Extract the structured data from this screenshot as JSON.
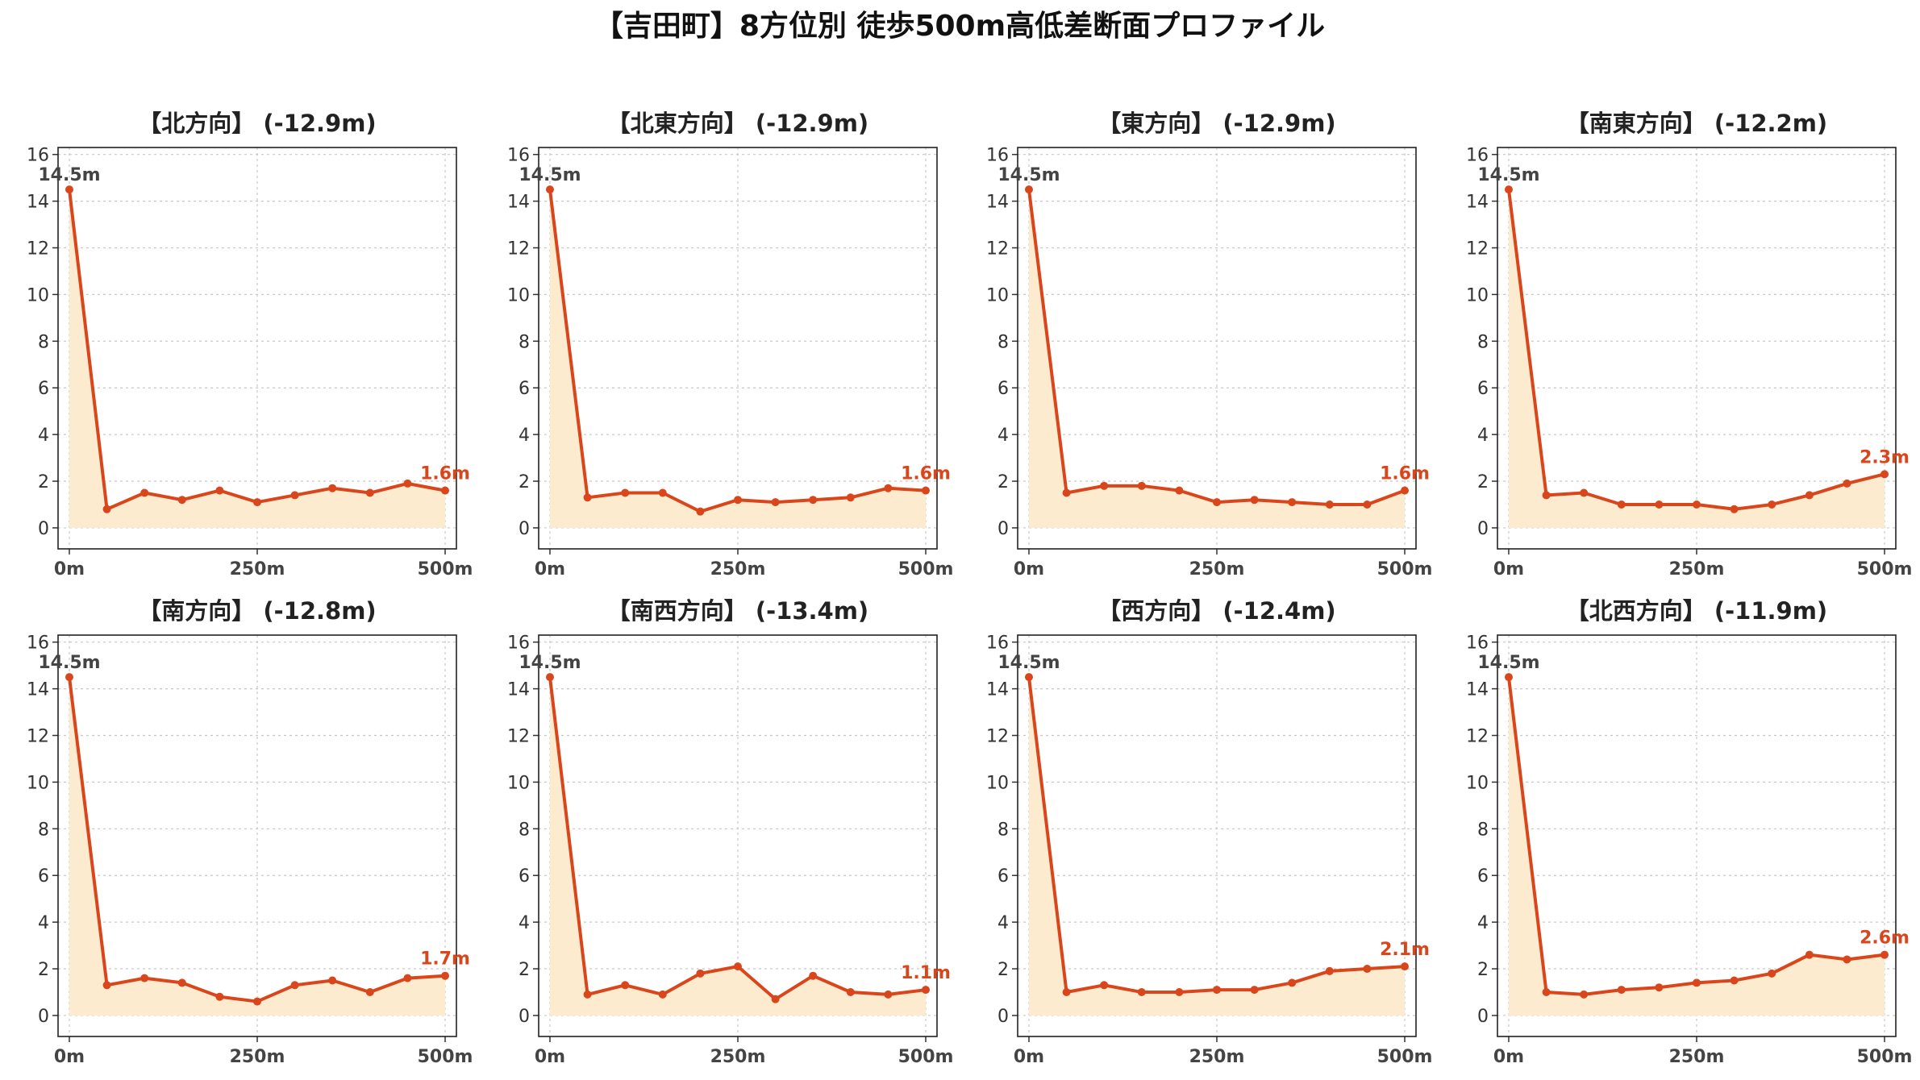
{
  "figure_title": "【吉田町】8方位別 徒歩500m高低差断面プロファイル",
  "colors": {
    "line": "#d9461b",
    "fill": "#fdebd0",
    "grid": "#c8c8c8",
    "start_label": "#444444",
    "end_label": "#d9461b"
  },
  "chart_data": [
    {
      "type": "area",
      "title": "【北方向】 (-12.9m)",
      "x": [
        0,
        50,
        100,
        150,
        200,
        250,
        300,
        350,
        400,
        450,
        500
      ],
      "y": [
        14.5,
        0.8,
        1.5,
        1.2,
        1.6,
        1.1,
        1.4,
        1.7,
        1.5,
        1.9,
        1.6
      ],
      "xticks": [
        "0m",
        "250m",
        "500m"
      ],
      "yticks": [
        "0",
        "2",
        "4",
        "6",
        "8",
        "10",
        "12",
        "14",
        "16"
      ],
      "start_label": "14.5m",
      "end_label": "1.6m",
      "xlim": [
        -15,
        515
      ],
      "ylim": [
        -0.9,
        16.3
      ],
      "grid": true
    },
    {
      "type": "area",
      "title": "【北東方向】 (-12.9m)",
      "x": [
        0,
        50,
        100,
        150,
        200,
        250,
        300,
        350,
        400,
        450,
        500
      ],
      "y": [
        14.5,
        1.3,
        1.5,
        1.5,
        0.7,
        1.2,
        1.1,
        1.2,
        1.3,
        1.7,
        1.6
      ],
      "xticks": [
        "0m",
        "250m",
        "500m"
      ],
      "yticks": [
        "0",
        "2",
        "4",
        "6",
        "8",
        "10",
        "12",
        "14",
        "16"
      ],
      "start_label": "14.5m",
      "end_label": "1.6m",
      "xlim": [
        -15,
        515
      ],
      "ylim": [
        -0.9,
        16.3
      ],
      "grid": true
    },
    {
      "type": "area",
      "title": "【東方向】 (-12.9m)",
      "x": [
        0,
        50,
        100,
        150,
        200,
        250,
        300,
        350,
        400,
        450,
        500
      ],
      "y": [
        14.5,
        1.5,
        1.8,
        1.8,
        1.6,
        1.1,
        1.2,
        1.1,
        1.0,
        1.0,
        1.6
      ],
      "xticks": [
        "0m",
        "250m",
        "500m"
      ],
      "yticks": [
        "0",
        "2",
        "4",
        "6",
        "8",
        "10",
        "12",
        "14",
        "16"
      ],
      "start_label": "14.5m",
      "end_label": "1.6m",
      "xlim": [
        -15,
        515
      ],
      "ylim": [
        -0.9,
        16.3
      ],
      "grid": true
    },
    {
      "type": "area",
      "title": "【南東方向】 (-12.2m)",
      "x": [
        0,
        50,
        100,
        150,
        200,
        250,
        300,
        350,
        400,
        450,
        500
      ],
      "y": [
        14.5,
        1.4,
        1.5,
        1.0,
        1.0,
        1.0,
        0.8,
        1.0,
        1.4,
        1.9,
        2.3
      ],
      "xticks": [
        "0m",
        "250m",
        "500m"
      ],
      "yticks": [
        "0",
        "2",
        "4",
        "6",
        "8",
        "10",
        "12",
        "14",
        "16"
      ],
      "start_label": "14.5m",
      "end_label": "2.3m",
      "xlim": [
        -15,
        515
      ],
      "ylim": [
        -0.9,
        16.3
      ],
      "grid": true
    },
    {
      "type": "area",
      "title": "【南方向】 (-12.8m)",
      "x": [
        0,
        50,
        100,
        150,
        200,
        250,
        300,
        350,
        400,
        450,
        500
      ],
      "y": [
        14.5,
        1.3,
        1.6,
        1.4,
        0.8,
        0.6,
        1.3,
        1.5,
        1.0,
        1.6,
        1.7
      ],
      "xticks": [
        "0m",
        "250m",
        "500m"
      ],
      "yticks": [
        "0",
        "2",
        "4",
        "6",
        "8",
        "10",
        "12",
        "14",
        "16"
      ],
      "start_label": "14.5m",
      "end_label": "1.7m",
      "xlim": [
        -15,
        515
      ],
      "ylim": [
        -0.9,
        16.3
      ],
      "grid": true
    },
    {
      "type": "area",
      "title": "【南西方向】 (-13.4m)",
      "x": [
        0,
        50,
        100,
        150,
        200,
        250,
        300,
        350,
        400,
        450,
        500
      ],
      "y": [
        14.5,
        0.9,
        1.3,
        0.9,
        1.8,
        2.1,
        0.7,
        1.7,
        1.0,
        0.9,
        1.1
      ],
      "xticks": [
        "0m",
        "250m",
        "500m"
      ],
      "yticks": [
        "0",
        "2",
        "4",
        "6",
        "8",
        "10",
        "12",
        "14",
        "16"
      ],
      "start_label": "14.5m",
      "end_label": "1.1m",
      "xlim": [
        -15,
        515
      ],
      "ylim": [
        -0.9,
        16.3
      ],
      "grid": true
    },
    {
      "type": "area",
      "title": "【西方向】 (-12.4m)",
      "x": [
        0,
        50,
        100,
        150,
        200,
        250,
        300,
        350,
        400,
        450,
        500
      ],
      "y": [
        14.5,
        1.0,
        1.3,
        1.0,
        1.0,
        1.1,
        1.1,
        1.4,
        1.9,
        2.0,
        2.1
      ],
      "xticks": [
        "0m",
        "250m",
        "500m"
      ],
      "yticks": [
        "0",
        "2",
        "4",
        "6",
        "8",
        "10",
        "12",
        "14",
        "16"
      ],
      "start_label": "14.5m",
      "end_label": "2.1m",
      "xlim": [
        -15,
        515
      ],
      "ylim": [
        -0.9,
        16.3
      ],
      "grid": true
    },
    {
      "type": "area",
      "title": "【北西方向】 (-11.9m)",
      "x": [
        0,
        50,
        100,
        150,
        200,
        250,
        300,
        350,
        400,
        450,
        500
      ],
      "y": [
        14.5,
        1.0,
        0.9,
        1.1,
        1.2,
        1.4,
        1.5,
        1.8,
        2.6,
        2.4,
        2.6
      ],
      "xticks": [
        "0m",
        "250m",
        "500m"
      ],
      "yticks": [
        "0",
        "2",
        "4",
        "6",
        "8",
        "10",
        "12",
        "14",
        "16"
      ],
      "start_label": "14.5m",
      "end_label": "2.6m",
      "xlim": [
        -15,
        515
      ],
      "ylim": [
        -0.9,
        16.3
      ],
      "grid": true
    }
  ]
}
